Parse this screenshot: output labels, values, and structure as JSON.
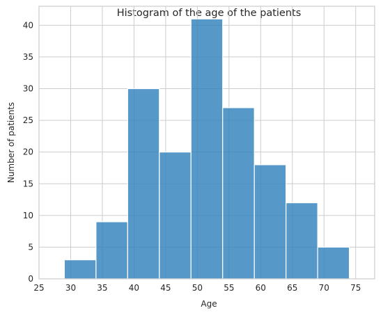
{
  "chart_data": {
    "type": "bar",
    "title": "Histogram of the age of the patients",
    "xlabel": "Age",
    "ylabel": "Number of patients",
    "xlim": [
      25,
      78
    ],
    "ylim": [
      0,
      43
    ],
    "xticks": [
      25,
      30,
      35,
      40,
      45,
      50,
      55,
      60,
      65,
      70,
      75
    ],
    "yticks": [
      0,
      5,
      10,
      15,
      20,
      25,
      30,
      35,
      40
    ],
    "grid": true,
    "bins": [
      {
        "start": 29,
        "end": 34,
        "count": 3
      },
      {
        "start": 34,
        "end": 39,
        "count": 9
      },
      {
        "start": 39,
        "end": 44,
        "count": 30
      },
      {
        "start": 44,
        "end": 49,
        "count": 20
      },
      {
        "start": 49,
        "end": 54,
        "count": 41
      },
      {
        "start": 54,
        "end": 59,
        "count": 27
      },
      {
        "start": 59,
        "end": 64,
        "count": 18
      },
      {
        "start": 64,
        "end": 69,
        "count": 12
      },
      {
        "start": 69,
        "end": 74,
        "count": 5
      }
    ],
    "bar_color": "#3182bd"
  }
}
